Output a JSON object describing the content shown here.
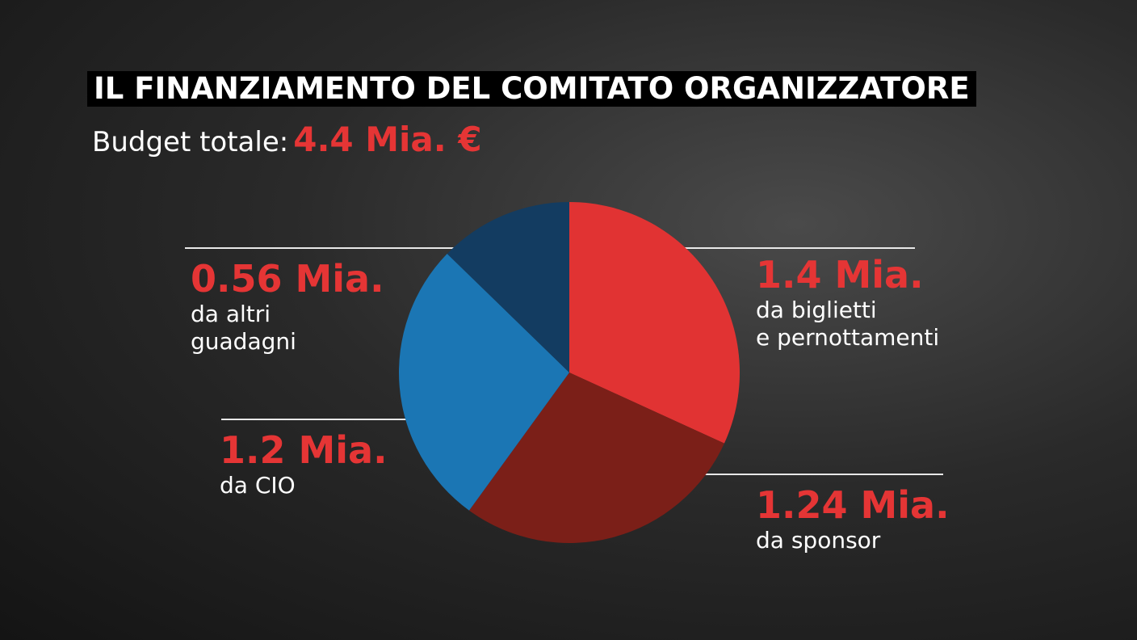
{
  "chart_data": {
    "type": "pie",
    "title": "IL FINANZIAMENTO DEL COMITATO ORGANIZZATORE",
    "subtitle": "Budget totale:",
    "total": {
      "value": 4.4,
      "label": "4.4 Mia. €"
    },
    "categories": [
      "da biglietti\ne pernottamenti",
      "da sponsor",
      "da CIO",
      "da altri\nguadagni"
    ],
    "values": [
      1.4,
      1.24,
      1.2,
      0.56
    ],
    "value_labels": [
      "1.4 Mia.",
      "1.24 Mia.",
      "1.2 Mia.",
      "0.56 Mia."
    ],
    "colors": [
      "#e13333",
      "#7b1f18",
      "#1b76b4",
      "#133c61"
    ]
  }
}
